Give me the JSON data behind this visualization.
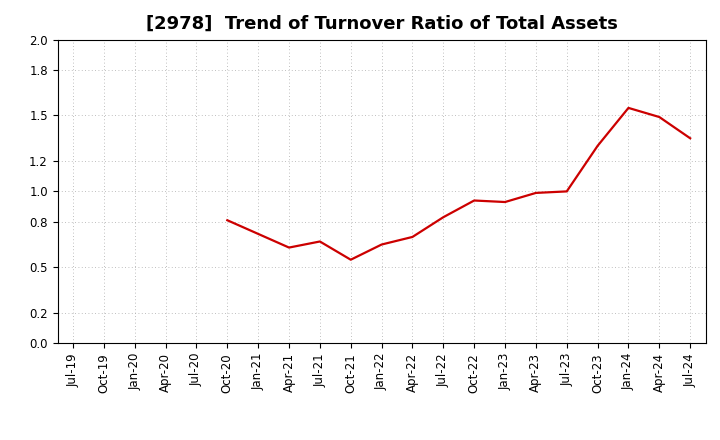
{
  "title": "[2978]  Trend of Turnover Ratio of Total Assets",
  "line_color": "#cc0000",
  "background_color": "#ffffff",
  "grid_color": "#aaaaaa",
  "ylim": [
    0.0,
    2.0
  ],
  "ytick_values": [
    0.0,
    0.2,
    0.5,
    0.8,
    1.0,
    1.2,
    1.5,
    1.8,
    2.0
  ],
  "xtick_labels": [
    "Jul-19",
    "Oct-19",
    "Jan-20",
    "Apr-20",
    "Jul-20",
    "Oct-20",
    "Jan-21",
    "Apr-21",
    "Jul-21",
    "Oct-21",
    "Jan-22",
    "Apr-22",
    "Jul-22",
    "Oct-22",
    "Jan-23",
    "Apr-23",
    "Jul-23",
    "Oct-23",
    "Jan-24",
    "Apr-24",
    "Jul-24"
  ],
  "values": [
    null,
    null,
    null,
    null,
    null,
    0.81,
    0.72,
    0.63,
    0.67,
    0.55,
    0.65,
    0.7,
    0.83,
    0.94,
    0.93,
    0.99,
    1.0,
    1.3,
    1.55,
    1.49,
    1.35
  ],
  "title_fontsize": 13,
  "tick_fontsize": 8.5,
  "line_width": 1.6
}
